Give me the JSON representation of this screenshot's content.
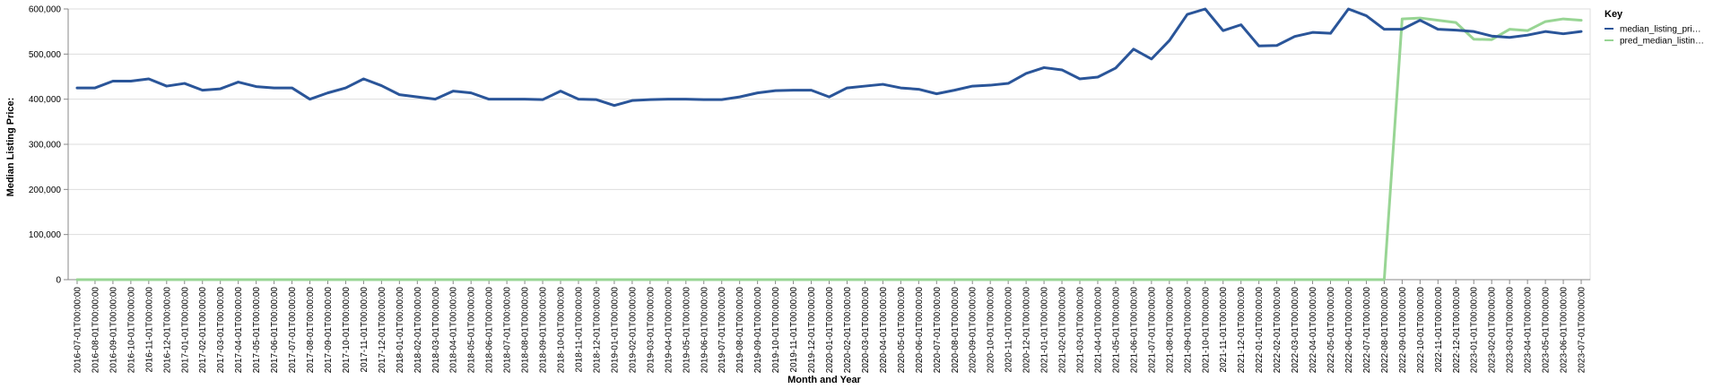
{
  "chart_data": {
    "type": "line",
    "xlabel": "Month and Year",
    "ylabel": "Median Listing Price:",
    "ylim": [
      0,
      600000
    ],
    "yticks": [
      "0",
      "100,000",
      "200,000",
      "300,000",
      "400,000",
      "500,000",
      "600,000"
    ],
    "grid": true,
    "legend_position": "right",
    "legend_title": "Key",
    "categories": [
      "2016-07-01T00:00:00",
      "2016-08-01T00:00:00",
      "2016-09-01T00:00:00",
      "2016-10-01T00:00:00",
      "2016-11-01T00:00:00",
      "2016-12-01T00:00:00",
      "2017-01-01T00:00:00",
      "2017-02-01T00:00:00",
      "2017-03-01T00:00:00",
      "2017-04-01T00:00:00",
      "2017-05-01T00:00:00",
      "2017-06-01T00:00:00",
      "2017-07-01T00:00:00",
      "2017-08-01T00:00:00",
      "2017-09-01T00:00:00",
      "2017-10-01T00:00:00",
      "2017-11-01T00:00:00",
      "2017-12-01T00:00:00",
      "2018-01-01T00:00:00",
      "2018-02-01T00:00:00",
      "2018-03-01T00:00:00",
      "2018-04-01T00:00:00",
      "2018-05-01T00:00:00",
      "2018-06-01T00:00:00",
      "2018-07-01T00:00:00",
      "2018-08-01T00:00:00",
      "2018-09-01T00:00:00",
      "2018-10-01T00:00:00",
      "2018-11-01T00:00:00",
      "2018-12-01T00:00:00",
      "2019-01-01T00:00:00",
      "2019-02-01T00:00:00",
      "2019-03-01T00:00:00",
      "2019-04-01T00:00:00",
      "2019-05-01T00:00:00",
      "2019-06-01T00:00:00",
      "2019-07-01T00:00:00",
      "2019-08-01T00:00:00",
      "2019-09-01T00:00:00",
      "2019-10-01T00:00:00",
      "2019-11-01T00:00:00",
      "2019-12-01T00:00:00",
      "2020-01-01T00:00:00",
      "2020-02-01T00:00:00",
      "2020-03-01T00:00:00",
      "2020-04-01T00:00:00",
      "2020-05-01T00:00:00",
      "2020-06-01T00:00:00",
      "2020-07-01T00:00:00",
      "2020-08-01T00:00:00",
      "2020-09-01T00:00:00",
      "2020-10-01T00:00:00",
      "2020-11-01T00:00:00",
      "2020-12-01T00:00:00",
      "2021-01-01T00:00:00",
      "2021-02-01T00:00:00",
      "2021-03-01T00:00:00",
      "2021-04-01T00:00:00",
      "2021-05-01T00:00:00",
      "2021-06-01T00:00:00",
      "2021-07-01T00:00:00",
      "2021-08-01T00:00:00",
      "2021-09-01T00:00:00",
      "2021-10-01T00:00:00",
      "2021-11-01T00:00:00",
      "2021-12-01T00:00:00",
      "2022-01-01T00:00:00",
      "2022-02-01T00:00:00",
      "2022-03-01T00:00:00",
      "2022-04-01T00:00:00",
      "2022-05-01T00:00:00",
      "2022-06-01T00:00:00",
      "2022-07-01T00:00:00",
      "2022-08-01T00:00:00",
      "2022-09-01T00:00:00",
      "2022-10-01T00:00:00",
      "2022-11-01T00:00:00",
      "2022-12-01T00:00:00",
      "2023-01-01T00:00:00",
      "2023-02-01T00:00:00",
      "2023-03-01T00:00:00",
      "2023-04-01T00:00:00",
      "2023-05-01T00:00:00",
      "2023-06-01T00:00:00",
      "2023-07-01T00:00:00"
    ],
    "series": [
      {
        "name": "median_listing_pri…",
        "color": "#2a5599",
        "values": [
          425000,
          425000,
          440000,
          440000,
          445000,
          429000,
          435000,
          420000,
          423000,
          438000,
          428000,
          425000,
          425000,
          400000,
          414000,
          425000,
          445000,
          430000,
          410000,
          405000,
          400000,
          418000,
          414000,
          400000,
          400000,
          400000,
          399000,
          418000,
          400000,
          399000,
          386000,
          397000,
          399000,
          400000,
          400000,
          399000,
          399000,
          405000,
          414000,
          419000,
          420000,
          420000,
          405000,
          425000,
          429000,
          433000,
          425000,
          422000,
          412000,
          420000,
          429000,
          431000,
          435000,
          457000,
          470000,
          465000,
          445000,
          449000,
          469000,
          511000,
          489000,
          530000,
          588000,
          600000,
          552000,
          565000,
          518000,
          519000,
          539000,
          548000,
          546000,
          600000,
          585000,
          555000,
          555000,
          575000,
          555000,
          553000,
          550000,
          540000,
          537000,
          542000,
          550000,
          545000,
          550000
        ]
      },
      {
        "name": "pred_median_listin…",
        "color": "#98d594",
        "values": [
          0,
          0,
          0,
          0,
          0,
          0,
          0,
          0,
          0,
          0,
          0,
          0,
          0,
          0,
          0,
          0,
          0,
          0,
          0,
          0,
          0,
          0,
          0,
          0,
          0,
          0,
          0,
          0,
          0,
          0,
          0,
          0,
          0,
          0,
          0,
          0,
          0,
          0,
          0,
          0,
          0,
          0,
          0,
          0,
          0,
          0,
          0,
          0,
          0,
          0,
          0,
          0,
          0,
          0,
          0,
          0,
          0,
          0,
          0,
          0,
          0,
          0,
          0,
          0,
          0,
          0,
          0,
          0,
          0,
          0,
          0,
          0,
          0,
          0,
          578000,
          580000,
          575000,
          570000,
          533000,
          532000,
          555000,
          552000,
          572000,
          578000,
          575000
        ]
      }
    ]
  }
}
